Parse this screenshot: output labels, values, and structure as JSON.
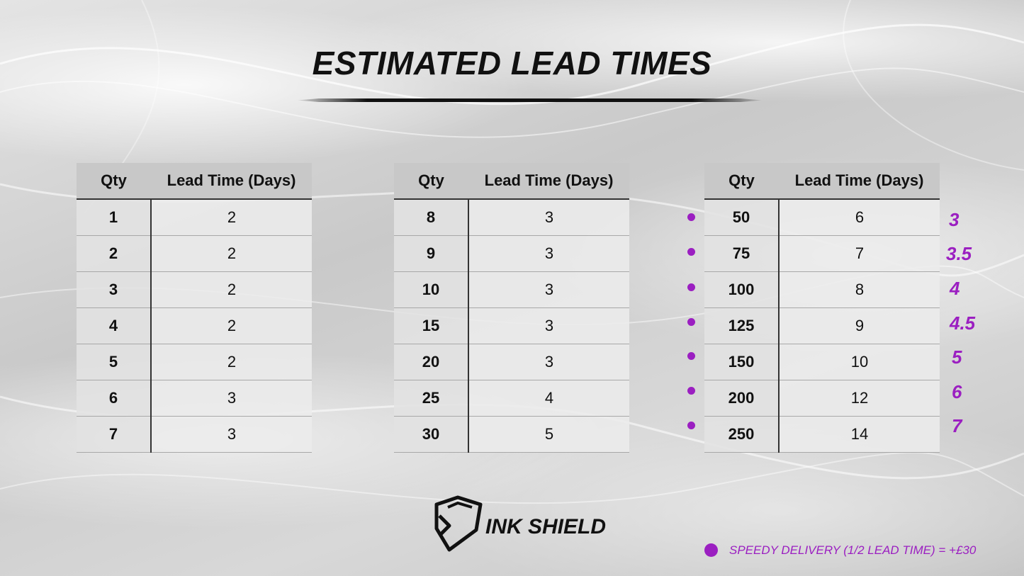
{
  "title": "ESTIMATED LEAD TIMES",
  "headers": {
    "qty": "Qty",
    "lead": "Lead Time (Days)"
  },
  "table1": [
    {
      "qty": "1",
      "days": "2"
    },
    {
      "qty": "2",
      "days": "2"
    },
    {
      "qty": "3",
      "days": "2"
    },
    {
      "qty": "4",
      "days": "2"
    },
    {
      "qty": "5",
      "days": "2"
    },
    {
      "qty": "6",
      "days": "3"
    },
    {
      "qty": "7",
      "days": "3"
    }
  ],
  "table2": [
    {
      "qty": "8",
      "days": "3"
    },
    {
      "qty": "9",
      "days": "3"
    },
    {
      "qty": "10",
      "days": "3"
    },
    {
      "qty": "15",
      "days": "3"
    },
    {
      "qty": "20",
      "days": "3"
    },
    {
      "qty": "25",
      "days": "4"
    },
    {
      "qty": "30",
      "days": "5"
    }
  ],
  "table3": [
    {
      "qty": "50",
      "days": "6",
      "speedy": "3"
    },
    {
      "qty": "75",
      "days": "7",
      "speedy": "3.5"
    },
    {
      "qty": "100",
      "days": "8",
      "speedy": "4"
    },
    {
      "qty": "125",
      "days": "9",
      "speedy": "4.5"
    },
    {
      "qty": "150",
      "days": "10",
      "speedy": "5"
    },
    {
      "qty": "200",
      "days": "12",
      "speedy": "6"
    },
    {
      "qty": "250",
      "days": "14",
      "speedy": "7"
    }
  ],
  "logo": {
    "text": "INK SHIELD",
    "icon": "shield-icon"
  },
  "legend": {
    "text": "SPEEDY DELIVERY (1/2 LEAD TIME) =  +£30"
  },
  "colors": {
    "accent": "#9b1fc1",
    "text": "#111111",
    "header_bg": "#c8c8c8"
  }
}
